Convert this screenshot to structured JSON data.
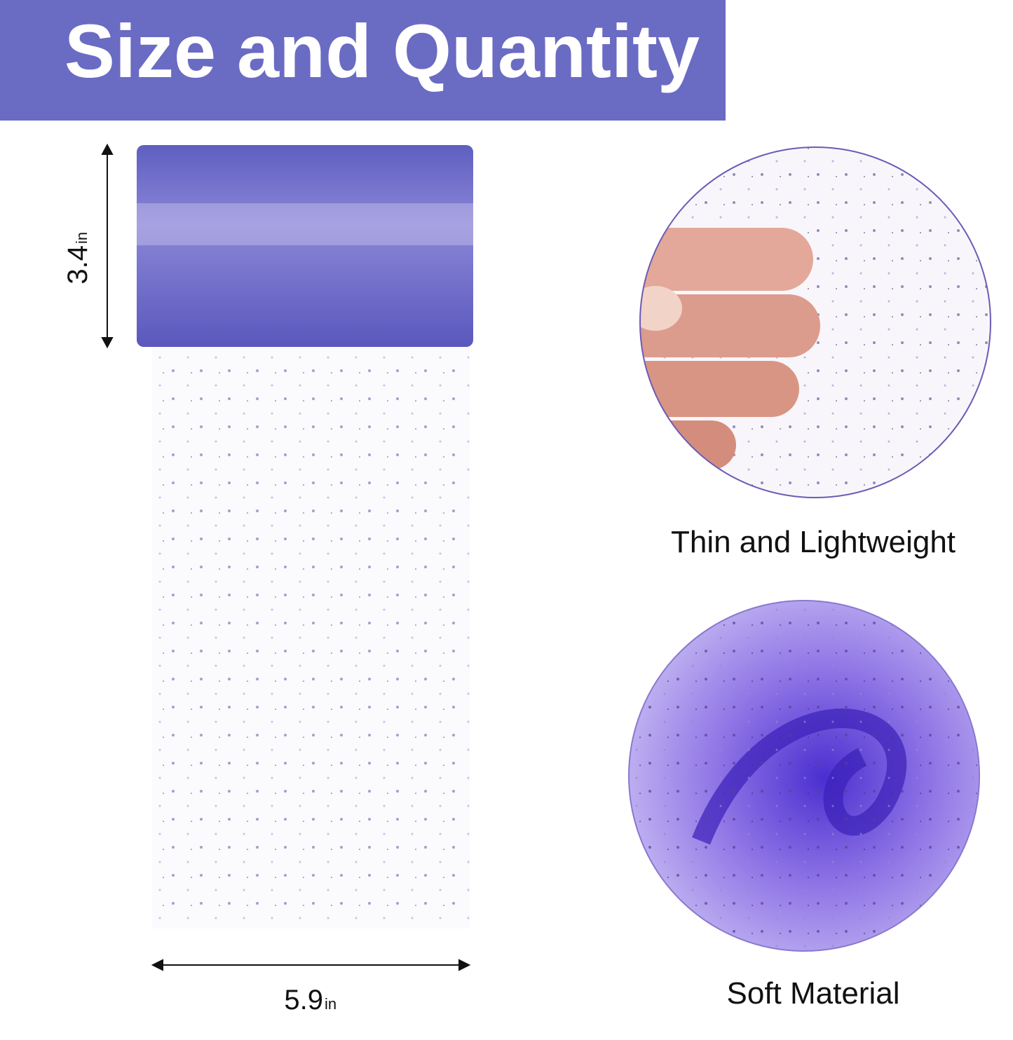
{
  "header": {
    "title": "Size and Quantity"
  },
  "dimensions": {
    "height": {
      "value": 3.4,
      "unit": "in"
    },
    "width": {
      "value": 5.9,
      "unit": "in"
    }
  },
  "features": [
    {
      "label": "Thin and Lightweight"
    },
    {
      "label": "Soft Material"
    }
  ]
}
